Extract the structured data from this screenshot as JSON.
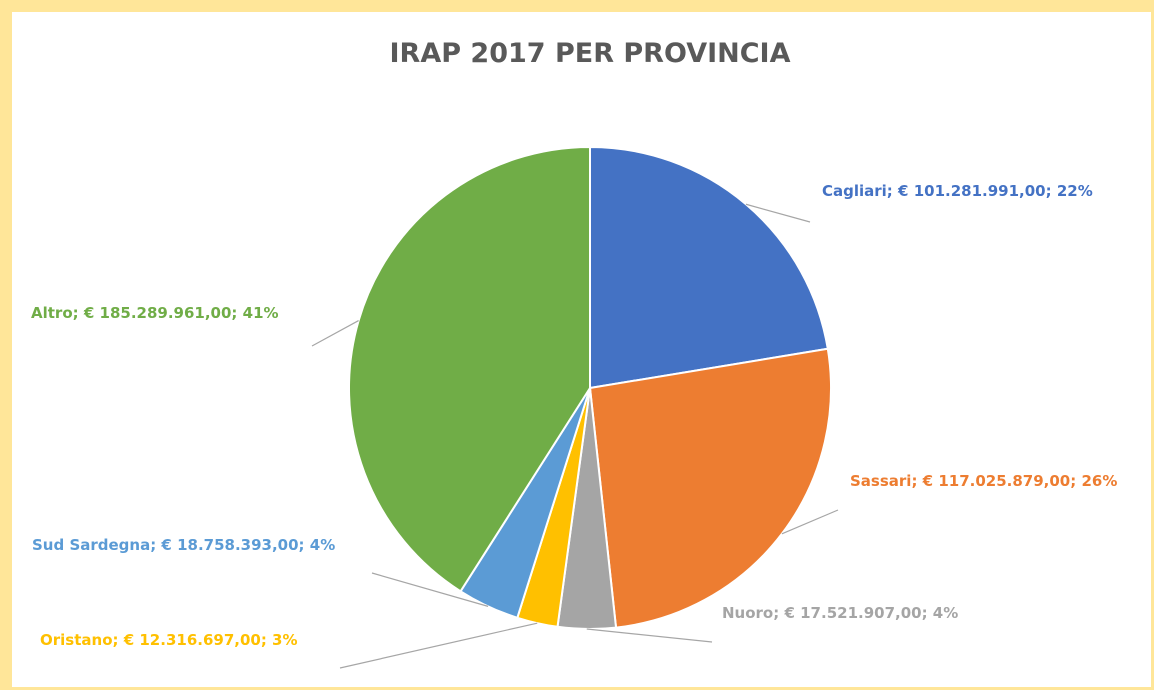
{
  "chart_data": {
    "type": "pie",
    "title": "IRAP 2017 PER PROVINCIA",
    "slices": [
      {
        "name": "Cagliari",
        "value": 101281991.0,
        "value_label": "€ 101.281.991,00",
        "percent_label": "22%",
        "color": "#4472C4"
      },
      {
        "name": "Sassari",
        "value": 117025879.0,
        "value_label": "€ 117.025.879,00",
        "percent_label": "26%",
        "color": "#ED7D31"
      },
      {
        "name": "Nuoro",
        "value": 17521907.0,
        "value_label": "€ 17.521.907,00",
        "percent_label": "4%",
        "color": "#A5A5A5"
      },
      {
        "name": "Oristano",
        "value": 12316697.0,
        "value_label": "€ 12.316.697,00",
        "percent_label": "3%",
        "color": "#FFC000"
      },
      {
        "name": "Sud Sardegna",
        "value": 18758393.0,
        "value_label": "€ 18.758.393,00",
        "percent_label": "4%",
        "color": "#5B9BD5"
      },
      {
        "name": "Altro",
        "value": 185289961.0,
        "value_label": "€ 185.289.961,00",
        "percent_label": "41%",
        "color": "#70AD47"
      }
    ],
    "data_labels": [
      "Cagliari; € 101.281.991,00; 22%",
      "Sassari; € 117.025.879,00; 26%",
      "Nuoro; € 17.521.907,00; 4%",
      "Oristano; € 12.316.697,00; 3%",
      "Sud Sardegna; € 18.758.393,00; 4%",
      "Altro; € 185.289.961,00; 41%"
    ],
    "legend": "none",
    "start_angle": "top, clockwise"
  },
  "colors": {
    "frame": "#FFE699",
    "title": "#595959",
    "leader_line": "#A6A6A6"
  }
}
